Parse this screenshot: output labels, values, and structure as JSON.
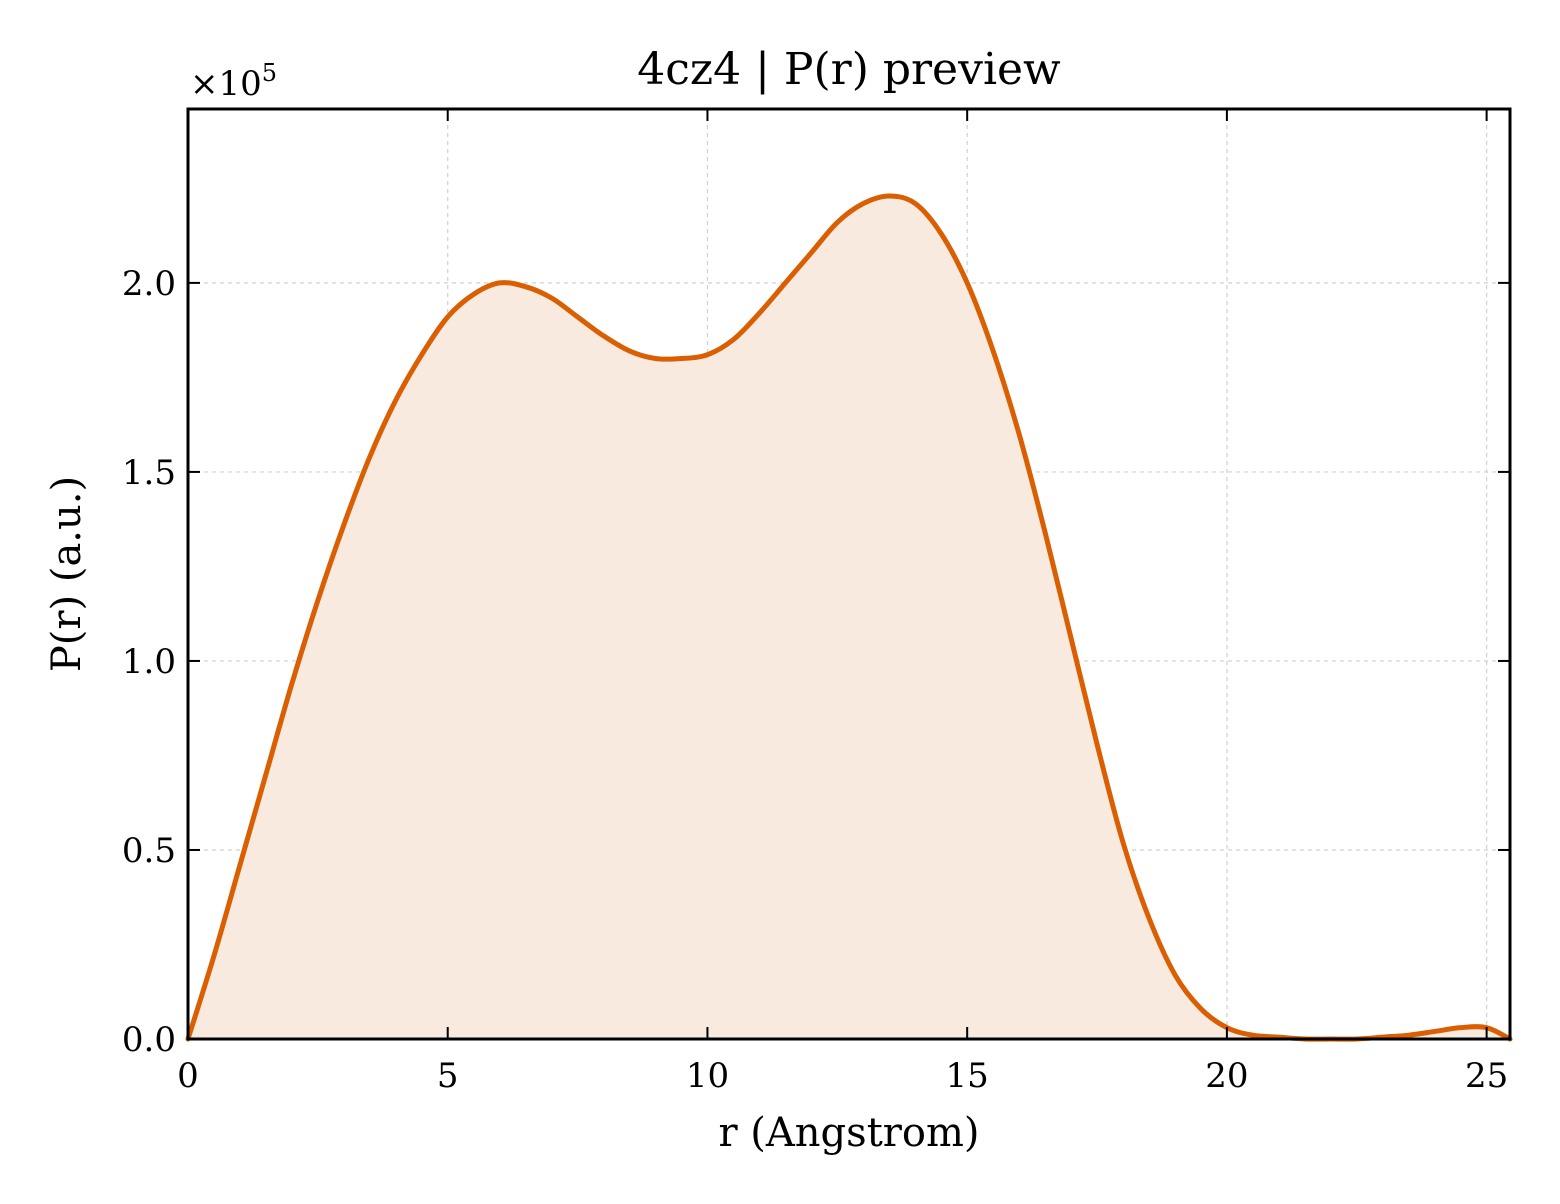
{
  "chart_data": {
    "type": "area",
    "title": "4cz4 | P(r) preview",
    "xlabel": "r (Angstrom)",
    "ylabel": "P(r) (a.u.)",
    "y_scale_factor": "×10",
    "y_scale_exponent": "5",
    "xlim": [
      0,
      25.45
    ],
    "ylim": [
      0,
      2.46
    ],
    "grid": true,
    "legend": "none",
    "x_ticks": [
      {
        "value": 0,
        "label": "0"
      },
      {
        "value": 5,
        "label": "5"
      },
      {
        "value": 10,
        "label": "10"
      },
      {
        "value": 15,
        "label": "15"
      },
      {
        "value": 20,
        "label": "20"
      },
      {
        "value": 25,
        "label": "25"
      }
    ],
    "y_ticks": [
      {
        "value": 0.0,
        "label": "0.0"
      },
      {
        "value": 0.5,
        "label": "0.5"
      },
      {
        "value": 1.0,
        "label": "1.0"
      },
      {
        "value": 1.5,
        "label": "1.5"
      },
      {
        "value": 2.0,
        "label": "2.0"
      }
    ],
    "line_color": "#d95f02",
    "fill_color": "#f8eadf",
    "series": [
      {
        "x": [
          0,
          0.5,
          1.0,
          1.5,
          2.0,
          2.5,
          3.0,
          3.5,
          4.0,
          4.5,
          5.0,
          5.5,
          6.0,
          6.5,
          7.0,
          7.5,
          8.0,
          8.5,
          9.0,
          9.5,
          10.0,
          10.5,
          11.0,
          11.5,
          12.0,
          12.5,
          13.0,
          13.5,
          14.0,
          14.5,
          15.0,
          15.5,
          16.0,
          16.5,
          17.0,
          17.5,
          18.0,
          18.5,
          19.0,
          19.5,
          20.0,
          20.5,
          21.0,
          21.5,
          22.0,
          22.5,
          23.0,
          23.5,
          24.0,
          24.5,
          25.0,
          25.45
        ],
        "y": [
          0.0,
          0.22,
          0.46,
          0.7,
          0.94,
          1.16,
          1.36,
          1.54,
          1.69,
          1.81,
          1.91,
          1.97,
          2.0,
          1.99,
          1.96,
          1.91,
          1.86,
          1.82,
          1.8,
          1.8,
          1.81,
          1.85,
          1.92,
          2.0,
          2.08,
          2.16,
          2.21,
          2.23,
          2.21,
          2.13,
          2.0,
          1.82,
          1.6,
          1.34,
          1.06,
          0.78,
          0.52,
          0.32,
          0.17,
          0.08,
          0.03,
          0.01,
          0.005,
          0.0,
          0.0,
          0.0,
          0.005,
          0.01,
          0.02,
          0.03,
          0.03,
          0.0
        ]
      }
    ]
  }
}
